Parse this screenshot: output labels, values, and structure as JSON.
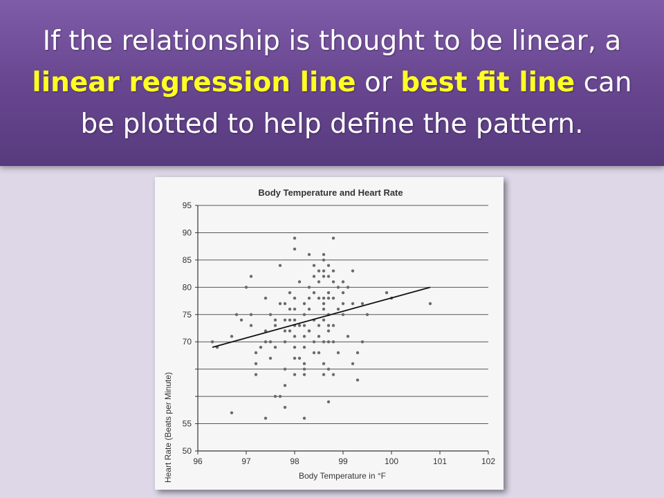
{
  "slide": {
    "text_1": "If the relationship is thought to be linear, a",
    "highlight_1": "linear regression line",
    "text_2": " or ",
    "highlight_2": "best fit line",
    "text_3": " can",
    "text_4": "be plotted to help define the pattern."
  },
  "colors": {
    "banner": "#6a4892",
    "highlight": "#ffff24",
    "background": "#ddd7e8"
  },
  "chart_data": {
    "type": "scatter",
    "title": "Body Temperature and Heart Rate",
    "xlabel": "Body Temperature in °F",
    "ylabel": "Heart Rate (Beats per Minute)",
    "xlim": [
      96,
      102
    ],
    "ylim": [
      50,
      95
    ],
    "xticks": [
      96,
      97,
      98,
      99,
      100,
      101,
      102
    ],
    "x_tick_labels": [
      "96",
      "97",
      "98",
      "99",
      "100",
      "101",
      "102"
    ],
    "yticks": [
      50,
      55,
      60,
      65,
      70,
      75,
      80,
      85,
      90,
      95
    ],
    "y_tick_labels": [
      "50",
      "55",
      "",
      "",
      "70",
      "75",
      "80",
      "85",
      "90",
      "95"
    ],
    "grid": "horizontal",
    "points": [
      [
        96.3,
        70
      ],
      [
        96.4,
        69
      ],
      [
        96.7,
        71
      ],
      [
        96.7,
        57
      ],
      [
        96.8,
        75
      ],
      [
        96.9,
        74
      ],
      [
        97.0,
        80
      ],
      [
        97.1,
        82
      ],
      [
        97.1,
        75
      ],
      [
        97.1,
        73
      ],
      [
        97.2,
        68
      ],
      [
        97.2,
        66
      ],
      [
        97.2,
        64
      ],
      [
        97.3,
        69
      ],
      [
        97.4,
        70
      ],
      [
        97.4,
        72
      ],
      [
        97.4,
        78
      ],
      [
        97.4,
        56
      ],
      [
        97.5,
        70
      ],
      [
        97.5,
        67
      ],
      [
        97.5,
        75
      ],
      [
        97.6,
        74
      ],
      [
        97.6,
        73
      ],
      [
        97.6,
        69
      ],
      [
        97.6,
        60
      ],
      [
        97.7,
        84
      ],
      [
        97.7,
        77
      ],
      [
        97.7,
        60
      ],
      [
        97.8,
        77
      ],
      [
        97.8,
        72
      ],
      [
        97.8,
        70
      ],
      [
        97.8,
        74
      ],
      [
        97.8,
        65
      ],
      [
        97.8,
        62
      ],
      [
        97.8,
        58
      ],
      [
        97.9,
        74
      ],
      [
        97.9,
        72
      ],
      [
        97.9,
        79
      ],
      [
        97.9,
        76
      ],
      [
        98.0,
        89
      ],
      [
        98.0,
        87
      ],
      [
        98.0,
        78
      ],
      [
        98.0,
        76
      ],
      [
        98.0,
        74
      ],
      [
        98.0,
        73
      ],
      [
        98.0,
        71
      ],
      [
        98.0,
        69
      ],
      [
        98.0,
        67
      ],
      [
        98.0,
        64
      ],
      [
        98.1,
        73
      ],
      [
        98.1,
        81
      ],
      [
        98.1,
        67
      ],
      [
        98.2,
        73
      ],
      [
        98.2,
        69
      ],
      [
        98.2,
        75
      ],
      [
        98.2,
        77
      ],
      [
        98.2,
        71
      ],
      [
        98.2,
        66
      ],
      [
        98.2,
        65
      ],
      [
        98.2,
        64
      ],
      [
        98.2,
        56
      ],
      [
        98.3,
        72
      ],
      [
        98.3,
        80
      ],
      [
        98.3,
        86
      ],
      [
        98.3,
        78
      ],
      [
        98.3,
        76
      ],
      [
        98.3,
        72
      ],
      [
        98.4,
        82
      ],
      [
        98.4,
        79
      ],
      [
        98.4,
        84
      ],
      [
        98.4,
        74
      ],
      [
        98.4,
        70
      ],
      [
        98.4,
        68
      ],
      [
        98.5,
        83
      ],
      [
        98.5,
        81
      ],
      [
        98.5,
        78
      ],
      [
        98.5,
        71
      ],
      [
        98.5,
        68
      ],
      [
        98.5,
        73
      ],
      [
        98.6,
        86
      ],
      [
        98.6,
        85
      ],
      [
        98.6,
        83
      ],
      [
        98.6,
        82
      ],
      [
        98.6,
        78
      ],
      [
        98.6,
        77
      ],
      [
        98.6,
        76
      ],
      [
        98.6,
        74
      ],
      [
        98.6,
        70
      ],
      [
        98.6,
        66
      ],
      [
        98.6,
        64
      ],
      [
        98.7,
        84
      ],
      [
        98.7,
        82
      ],
      [
        98.7,
        79
      ],
      [
        98.7,
        78
      ],
      [
        98.7,
        75
      ],
      [
        98.7,
        73
      ],
      [
        98.7,
        72
      ],
      [
        98.7,
        70
      ],
      [
        98.7,
        65
      ],
      [
        98.7,
        59
      ],
      [
        98.8,
        89
      ],
      [
        98.8,
        83
      ],
      [
        98.8,
        81
      ],
      [
        98.8,
        78
      ],
      [
        98.8,
        73
      ],
      [
        98.8,
        70
      ],
      [
        98.8,
        64
      ],
      [
        98.9,
        80
      ],
      [
        98.9,
        76
      ],
      [
        98.9,
        68
      ],
      [
        99.0,
        81
      ],
      [
        99.0,
        79
      ],
      [
        99.0,
        77
      ],
      [
        99.0,
        75
      ],
      [
        99.1,
        80
      ],
      [
        99.1,
        71
      ],
      [
        99.2,
        83
      ],
      [
        99.2,
        77
      ],
      [
        99.2,
        66
      ],
      [
        99.3,
        68
      ],
      [
        99.3,
        63
      ],
      [
        99.4,
        77
      ],
      [
        99.4,
        70
      ],
      [
        99.5,
        75
      ],
      [
        99.9,
        79
      ],
      [
        100.0,
        78
      ],
      [
        100.8,
        77
      ]
    ],
    "regression_line": {
      "from": [
        96.3,
        69
      ],
      "to": [
        100.8,
        80
      ]
    }
  }
}
